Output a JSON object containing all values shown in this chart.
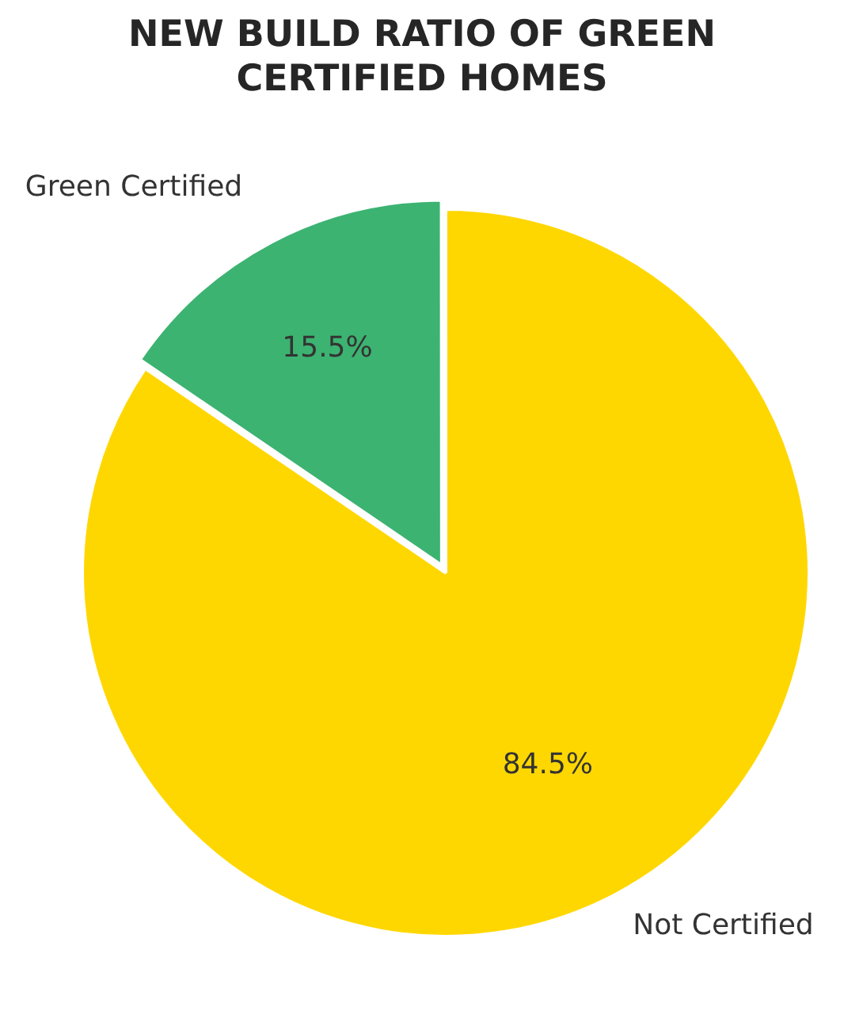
{
  "chart_data": {
    "type": "pie",
    "title": "NEW BUILD RATIO OF GREEN\nCERTIFIED HOMES",
    "categories": [
      "Green Certified",
      "Not Certified"
    ],
    "values": [
      15.5,
      84.5
    ],
    "colors": [
      "#3cb371",
      "#ffd700"
    ],
    "value_labels": [
      "15.5%",
      "84.5%"
    ]
  }
}
